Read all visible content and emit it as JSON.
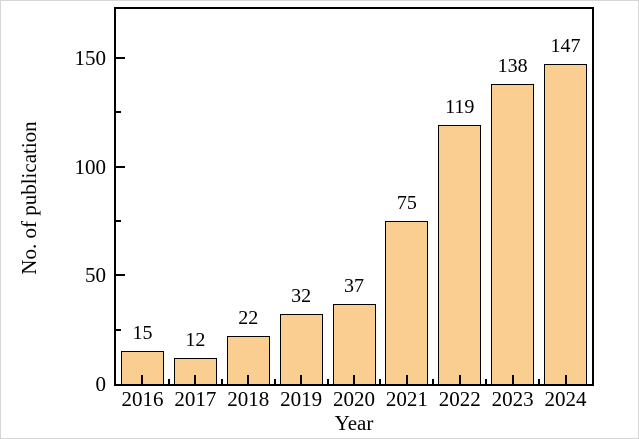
{
  "chart_data": {
    "type": "bar",
    "title": "",
    "xlabel": "Year",
    "ylabel": "No. of publication",
    "categories": [
      "2016",
      "2017",
      "2018",
      "2019",
      "2020",
      "2021",
      "2022",
      "2023",
      "2024"
    ],
    "values": [
      15,
      12,
      22,
      32,
      37,
      75,
      119,
      138,
      147
    ],
    "value_labels_shown": true,
    "ylim": [
      0,
      172.5
    ],
    "yticks_major": [
      0,
      50,
      100,
      150
    ],
    "yticks_minor": [
      25,
      75,
      125
    ],
    "ytick_labels": [
      "0",
      "50",
      "100",
      "150"
    ],
    "grid": false,
    "legend": null,
    "bar_color": "#FACD91",
    "bar_edge_color": "#000000",
    "axis_color": "#000000",
    "background_color": "#ffffff"
  }
}
